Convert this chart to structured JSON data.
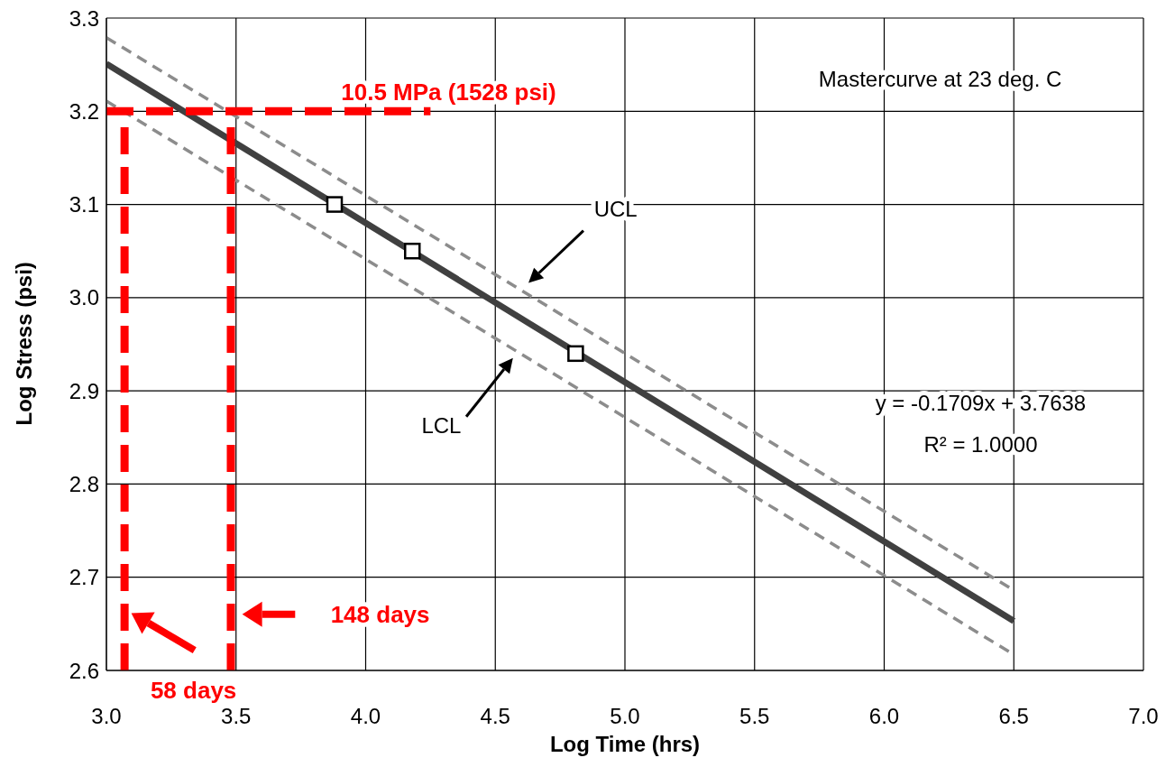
{
  "chart_data": {
    "type": "line",
    "xlabel": "Log Time (hrs)",
    "ylabel": "Log Stress (psi)",
    "xlim": [
      3.0,
      7.0
    ],
    "ylim": [
      2.6,
      3.3
    ],
    "xticks": [
      {
        "value": 3,
        "label": "3.0"
      },
      {
        "value": 3.5,
        "label": "3.5"
      },
      {
        "value": 4,
        "label": "4.0"
      },
      {
        "value": 4.5,
        "label": "4.5"
      },
      {
        "value": 5,
        "label": "5.0"
      },
      {
        "value": 5.5,
        "label": "5.5"
      },
      {
        "value": 6,
        "label": "6.0"
      },
      {
        "value": 6.5,
        "label": "6.5"
      },
      {
        "value": 7,
        "label": "7.0"
      }
    ],
    "yticks": [
      {
        "value": 2.6,
        "label": "2.6"
      },
      {
        "value": 2.7,
        "label": "2.7"
      },
      {
        "value": 2.8,
        "label": "2.8"
      },
      {
        "value": 2.9,
        "label": "2.9"
      },
      {
        "value": 3,
        "label": "3.0"
      },
      {
        "value": 3.1,
        "label": "3.1"
      },
      {
        "value": 3.2,
        "label": "3.2"
      },
      {
        "value": 3.3,
        "label": "3.3"
      }
    ],
    "grid": true,
    "legend": false,
    "series": [
      {
        "color": "#404040",
        "x": [
          3.0,
          6.5
        ],
        "values": [
          3.251,
          2.653
        ],
        "marker": "none",
        "line_style": "solid"
      },
      {
        "color": "#8c8c8c",
        "x": [
          3.0,
          6.5
        ],
        "values": [
          3.279,
          2.686
        ],
        "marker": "none",
        "line_style": "dashed"
      },
      {
        "color": "#8c8c8c",
        "x": [
          3.0,
          6.5
        ],
        "values": [
          3.211,
          2.617
        ],
        "marker": "none",
        "line_style": "dashed"
      },
      {
        "type": "scatter",
        "color": "#000000",
        "x": [
          3.88,
          4.18,
          4.81
        ],
        "values": [
          3.1,
          3.05,
          2.94
        ],
        "marker": "square"
      },
      {
        "color": "#ff0000",
        "x": [
          3.0,
          4.25
        ],
        "values": [
          3.2,
          3.2
        ],
        "marker": "none",
        "line_style": "dashed"
      },
      {
        "color": "#ff0000",
        "x": [
          3.07,
          3.07
        ],
        "values": [
          2.6,
          3.2
        ],
        "marker": "none",
        "line_style": "dashed"
      },
      {
        "color": "#ff0000",
        "x": [
          3.48,
          3.48
        ],
        "values": [
          2.6,
          3.2
        ],
        "marker": "none",
        "line_style": "dashed"
      }
    ],
    "annotations": [
      "Mastercurve at 23 deg. C",
      "y = -0.1709x + 3.7638",
      "R² = 1.0000",
      "10.5 MPa (1528 psi)",
      "UCL",
      "LCL",
      "148 days",
      "58 days"
    ]
  }
}
